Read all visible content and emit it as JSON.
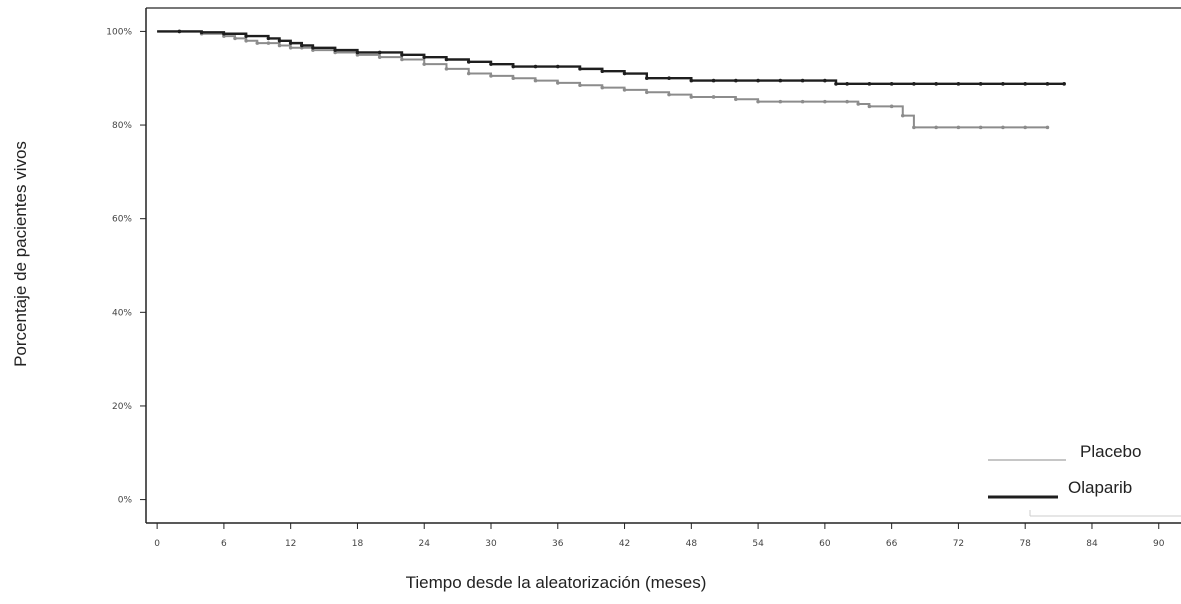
{
  "chart_data": {
    "type": "line",
    "title": "",
    "xlabel": "Tiempo desde la aleatorización (meses)",
    "ylabel": "Porcentaje de pacientes vivos",
    "xlim": [
      -1,
      92
    ],
    "ylim": [
      -5,
      105
    ],
    "x_ticks": [
      0,
      6,
      12,
      18,
      24,
      30,
      36,
      42,
      48,
      54,
      60,
      66,
      72,
      78,
      84,
      90
    ],
    "y_ticks": [
      0,
      20,
      40,
      60,
      80,
      100
    ],
    "y_tick_labels": [
      "0%",
      "20%",
      "40%",
      "60%",
      "80%",
      "100%"
    ],
    "grid": false,
    "legend_position": "bottom-right",
    "series": [
      {
        "name": "Placebo",
        "color": "#8c8c8c",
        "step": true,
        "x": [
          0,
          2,
          4,
          6,
          7,
          8,
          9,
          10,
          11,
          12,
          13,
          14,
          16,
          18,
          20,
          22,
          24,
          26,
          28,
          30,
          32,
          34,
          36,
          38,
          40,
          42,
          44,
          46,
          48,
          50,
          52,
          54,
          56,
          58,
          60,
          62,
          63,
          64,
          66,
          67,
          68,
          70,
          72,
          74,
          76,
          78,
          80
        ],
        "y": [
          100,
          100,
          99.5,
          99,
          98.5,
          98,
          97.5,
          97.5,
          97,
          96.5,
          96.5,
          96,
          95.5,
          95,
          94.5,
          94,
          93,
          92,
          91,
          90.5,
          90,
          89.5,
          89,
          88.5,
          88,
          87.5,
          87,
          86.5,
          86,
          86,
          85.5,
          85,
          85,
          85,
          85,
          85,
          84.5,
          84,
          84,
          82,
          79.5,
          79.5,
          79.5,
          79.5,
          79.5,
          79.5,
          79.5
        ]
      },
      {
        "name": "Olaparib",
        "color": "#1e1e1e",
        "step": true,
        "x": [
          0,
          2,
          4,
          6,
          8,
          10,
          11,
          12,
          13,
          14,
          16,
          18,
          20,
          22,
          24,
          26,
          28,
          30,
          32,
          34,
          36,
          38,
          40,
          42,
          44,
          46,
          48,
          50,
          52,
          54,
          56,
          58,
          60,
          61,
          62,
          64,
          66,
          68,
          70,
          72,
          74,
          76,
          78,
          80,
          81.5
        ],
        "y": [
          100,
          100,
          99.8,
          99.5,
          99,
          98.5,
          98,
          97.5,
          97,
          96.5,
          96,
          95.5,
          95.5,
          95,
          94.5,
          94,
          93.5,
          93,
          92.5,
          92.5,
          92.5,
          92,
          91.5,
          91,
          90,
          90,
          89.5,
          89.5,
          89.5,
          89.5,
          89.5,
          89.5,
          89.5,
          88.8,
          88.8,
          88.8,
          88.8,
          88.8,
          88.8,
          88.8,
          88.8,
          88.8,
          88.8,
          88.8,
          88.8
        ]
      }
    ]
  }
}
